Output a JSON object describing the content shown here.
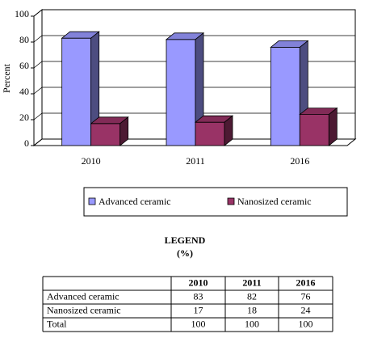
{
  "chart_data": {
    "type": "bar3d",
    "y_label": "Percent",
    "categories": [
      "2010",
      "2011",
      "2016"
    ],
    "series": [
      {
        "name": "Advanced ceramic",
        "color": "#9999ff",
        "values": [
          83,
          82,
          76
        ]
      },
      {
        "name": "Nanosized ceramic",
        "color": "#993366",
        "values": [
          17,
          18,
          24
        ]
      }
    ],
    "ylim": [
      0,
      100
    ],
    "yticks": [
      0,
      20,
      40,
      60,
      80,
      100
    ],
    "grid": true,
    "legend": "bottom"
  },
  "table": {
    "title": "LEGEND",
    "subtitle": "(%)",
    "total_label": "Total",
    "total": [
      100,
      100,
      100
    ]
  }
}
